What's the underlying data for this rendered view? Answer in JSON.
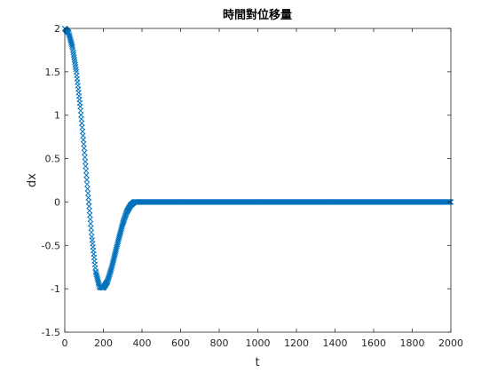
{
  "chart_data": {
    "type": "scatter",
    "title": "時間對位移量",
    "xlabel": "t",
    "ylabel": "dx",
    "xlim": [
      0,
      2000
    ],
    "ylim": [
      -1.5,
      2
    ],
    "xticks": [
      0,
      200,
      400,
      600,
      800,
      1000,
      1200,
      1400,
      1600,
      1800,
      2000
    ],
    "yticks": [
      -1.5,
      -1,
      -0.5,
      0,
      0.5,
      1,
      1.5,
      2
    ],
    "xtick_labels": [
      "0",
      "200",
      "400",
      "600",
      "800",
      "1000",
      "1200",
      "1400",
      "1600",
      "1800",
      "2000"
    ],
    "ytick_labels": [
      "-1.5",
      "-1",
      "-0.5",
      "0",
      "0.5",
      "1",
      "1.5",
      "2"
    ],
    "marker": "x",
    "grid": false,
    "series": [
      {
        "color": "#0072BD",
        "x": [
          0,
          20,
          40,
          60,
          80,
          100,
          120,
          140,
          160,
          180,
          200,
          220,
          240,
          260,
          280,
          300,
          320,
          340,
          360,
          380,
          400,
          500,
          600,
          700,
          800,
          900,
          1000,
          1100,
          1200,
          1300,
          1400,
          1500,
          1600,
          1700,
          1800,
          1900,
          2000
        ],
        "y": [
          2.0,
          1.95,
          1.78,
          1.5,
          1.1,
          0.62,
          0.1,
          -0.4,
          -0.8,
          -0.98,
          -0.99,
          -0.92,
          -0.78,
          -0.6,
          -0.42,
          -0.25,
          -0.12,
          -0.04,
          0.0,
          0.0,
          0.0,
          0.0,
          0.0,
          0.0,
          0.0,
          0.0,
          0.0,
          0.0,
          0.0,
          0.0,
          0.0,
          0.0,
          0.0,
          0.0,
          0.0,
          0.0,
          0.0
        ]
      }
    ]
  }
}
